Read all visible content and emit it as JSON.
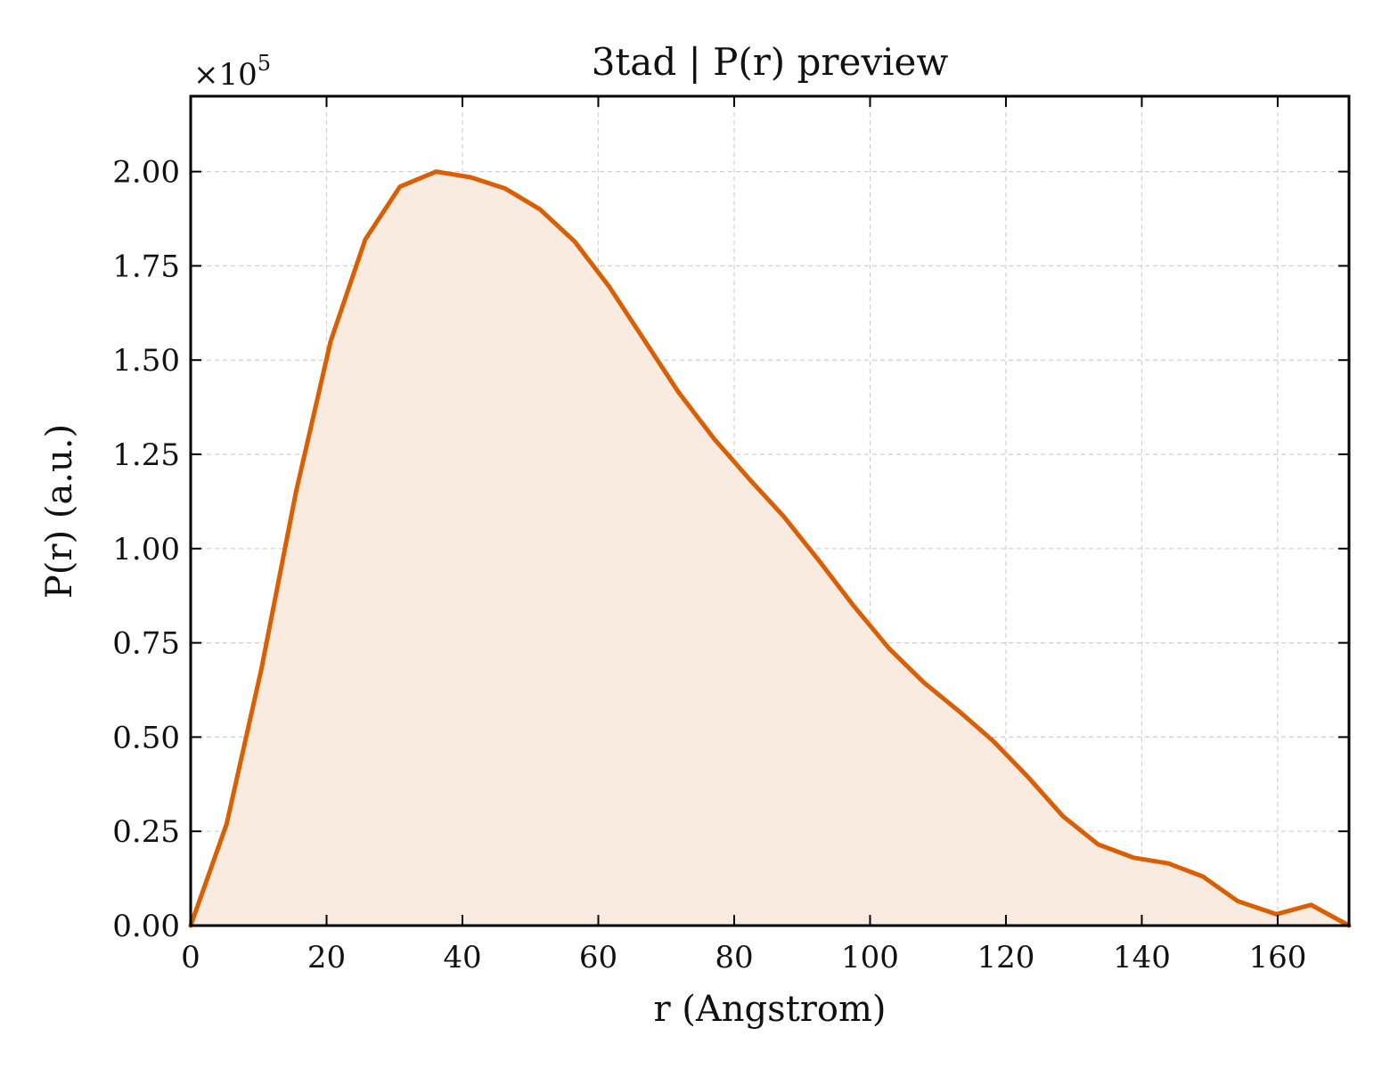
{
  "chart_data": {
    "type": "area",
    "title": "3tad | P(r) preview",
    "xlabel": "r (Angstrom)",
    "ylabel": "P(r) (a.u.)",
    "y_multiplier_label": "×10",
    "y_multiplier_exponent": "5",
    "xlim": [
      0,
      170.5
    ],
    "ylim": [
      0,
      2.2
    ],
    "x_ticks": [
      0,
      20,
      40,
      60,
      80,
      100,
      120,
      140,
      160
    ],
    "x_tick_labels": [
      "0",
      "20",
      "40",
      "60",
      "80",
      "100",
      "120",
      "140",
      "160"
    ],
    "y_ticks": [
      0,
      0.25,
      0.5,
      0.75,
      1.0,
      1.25,
      1.5,
      1.75,
      2.0
    ],
    "y_tick_labels": [
      "0.00",
      "0.25",
      "0.50",
      "0.75",
      "1.00",
      "1.25",
      "1.50",
      "1.75",
      "2.00"
    ],
    "grid": true,
    "colors": {
      "line": "#d95f02",
      "fill": "#f9ebe0"
    },
    "series": [
      {
        "x": [
          0,
          5.3,
          10.4,
          15.5,
          20.6,
          25.7,
          30.8,
          36.1,
          41.2,
          46.3,
          51.4,
          56.5,
          61.6,
          66.7,
          71.8,
          77.1,
          82.2,
          87.3,
          92.4,
          97.5,
          102.8,
          107.9,
          113.0,
          118.1,
          123.2,
          128.4,
          133.6,
          138.8,
          143.9,
          149.0,
          154.1,
          159.8,
          164.9,
          170.5
        ],
        "y": [
          0.0,
          0.27,
          0.68,
          1.15,
          1.55,
          1.82,
          1.96,
          2.0,
          1.985,
          1.955,
          1.9,
          1.815,
          1.695,
          1.555,
          1.415,
          1.29,
          1.185,
          1.085,
          0.97,
          0.85,
          0.735,
          0.645,
          0.57,
          0.49,
          0.395,
          0.29,
          0.215,
          0.18,
          0.165,
          0.13,
          0.065,
          0.03,
          0.055,
          0.0
        ]
      }
    ]
  }
}
